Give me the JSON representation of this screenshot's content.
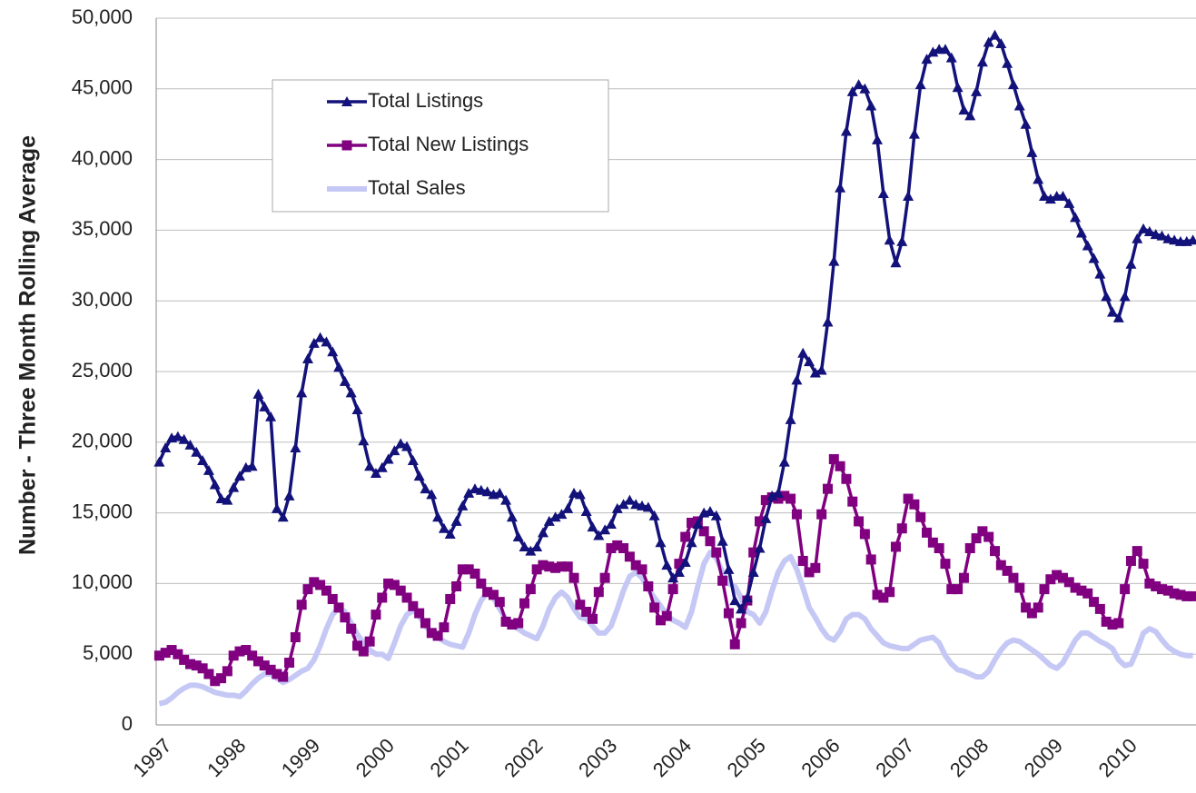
{
  "chart_data": {
    "type": "line",
    "y_label": "Number  - Three Month Rolling Average",
    "categories": [
      "1997",
      null,
      null,
      null,
      null,
      null,
      null,
      null,
      null,
      null,
      null,
      null,
      "1998",
      null,
      null,
      null,
      null,
      null,
      null,
      null,
      null,
      null,
      null,
      null,
      "1999",
      null,
      null,
      null,
      null,
      null,
      null,
      null,
      null,
      null,
      null,
      null,
      "2000",
      null,
      null,
      null,
      null,
      null,
      null,
      null,
      null,
      null,
      null,
      null,
      "2001",
      null,
      null,
      null,
      null,
      null,
      null,
      null,
      null,
      null,
      null,
      null,
      "2002",
      null,
      null,
      null,
      null,
      null,
      null,
      null,
      null,
      null,
      null,
      null,
      "2003",
      null,
      null,
      null,
      null,
      null,
      null,
      null,
      null,
      null,
      null,
      null,
      "2004",
      null,
      null,
      null,
      null,
      null,
      null,
      null,
      null,
      null,
      null,
      null,
      "2005",
      null,
      null,
      null,
      null,
      null,
      null,
      null,
      null,
      null,
      null,
      null,
      "2006",
      null,
      null,
      null,
      null,
      null,
      null,
      null,
      null,
      null,
      null,
      null,
      "2007",
      null,
      null,
      null,
      null,
      null,
      null,
      null,
      null,
      null,
      null,
      null,
      "2008",
      null,
      null,
      null,
      null,
      null,
      null,
      null,
      null,
      null,
      null,
      null,
      "2009",
      null,
      null,
      null,
      null,
      null,
      null,
      null,
      null,
      null,
      null,
      null,
      "2010",
      null,
      null,
      null,
      null,
      null,
      null,
      null,
      null,
      null,
      null,
      null
    ],
    "series": [
      {
        "name": "Total Listings",
        "color": "#12127a",
        "marker": "triangle",
        "values": [
          18600,
          19600,
          20300,
          20400,
          20200,
          19800,
          19300,
          18700,
          18000,
          17000,
          16000,
          15900,
          16800,
          17600,
          18200,
          18300,
          23400,
          22500,
          21800,
          15300,
          14700,
          16200,
          19600,
          23500,
          25900,
          27000,
          27400,
          27100,
          26400,
          25300,
          24300,
          23500,
          22300,
          20100,
          18300,
          17800,
          18200,
          18800,
          19400,
          19900,
          19700,
          18700,
          17600,
          16700,
          16300,
          14700,
          13900,
          13500,
          14400,
          15500,
          16400,
          16700,
          16600,
          16500,
          16300,
          16400,
          15900,
          14700,
          13300,
          12600,
          12300,
          12600,
          13600,
          14400,
          14700,
          14900,
          15300,
          16400,
          16300,
          15100,
          14000,
          13400,
          13800,
          14200,
          15300,
          15600,
          15900,
          15600,
          15500,
          15400,
          14800,
          12900,
          11300,
          10400,
          10800,
          11500,
          12900,
          14200,
          15000,
          15100,
          14800,
          13000,
          11000,
          8800,
          8200,
          9000,
          10800,
          12500,
          14600,
          16200,
          16400,
          18600,
          21600,
          24400,
          26300,
          25700,
          24900,
          25100,
          28500,
          32800,
          38000,
          42000,
          44800,
          45300,
          45000,
          43800,
          41400,
          37600,
          34300,
          32700,
          34200,
          37400,
          41800,
          45300,
          47100,
          47600,
          47800,
          47800,
          47200,
          45100,
          43500,
          43100,
          44800,
          46900,
          48300,
          48800,
          48200,
          46800,
          45300,
          43800,
          42500,
          40500,
          38600,
          37400,
          37200,
          37400,
          37400,
          36900,
          35900,
          34800,
          33900,
          33000,
          31900,
          30300,
          29200,
          28800,
          30300,
          32600,
          34400,
          35100,
          34900,
          34700,
          34600,
          34400,
          34300,
          34200,
          34200,
          34300
        ]
      },
      {
        "name": "Total New Listings",
        "color": "#800080",
        "marker": "square",
        "values": [
          4900,
          5100,
          5300,
          5000,
          4600,
          4300,
          4200,
          4000,
          3600,
          3100,
          3300,
          3800,
          4900,
          5200,
          5300,
          4900,
          4500,
          4200,
          3900,
          3600,
          3400,
          4400,
          6200,
          8500,
          9600,
          10100,
          9900,
          9500,
          8900,
          8300,
          7600,
          6800,
          5600,
          5200,
          5900,
          7800,
          9000,
          10000,
          9900,
          9500,
          9000,
          8400,
          7900,
          7200,
          6500,
          6300,
          6900,
          8900,
          9800,
          11000,
          11000,
          10700,
          10000,
          9400,
          9200,
          8700,
          7300,
          7100,
          7200,
          8600,
          9600,
          11000,
          11300,
          11200,
          11100,
          11200,
          11200,
          10400,
          8500,
          8000,
          7500,
          9400,
          10400,
          12500,
          12700,
          12500,
          11900,
          11300,
          11000,
          9800,
          8300,
          7400,
          7700,
          9600,
          11400,
          13300,
          14300,
          14400,
          13700,
          13000,
          12200,
          10200,
          7900,
          5700,
          7200,
          8800,
          12200,
          14400,
          15900,
          16100,
          16000,
          16200,
          16000,
          14900,
          11600,
          10800,
          11100,
          14900,
          16700,
          18800,
          18300,
          17400,
          15800,
          14400,
          13500,
          11700,
          9200,
          9000,
          9400,
          12600,
          13900,
          16000,
          15600,
          14700,
          13600,
          12900,
          12500,
          11400,
          9600,
          9600,
          10400,
          12500,
          13200,
          13700,
          13300,
          12300,
          11300,
          10900,
          10400,
          9700,
          8300,
          7900,
          8300,
          9600,
          10300,
          10600,
          10400,
          10100,
          9700,
          9500,
          9300,
          8700,
          8200,
          7300,
          7100,
          7200,
          9600,
          11600,
          12300,
          11400,
          10000,
          9800,
          9600,
          9500,
          9300,
          9200,
          9100,
          9100
        ]
      },
      {
        "name": "Total Sales",
        "color": "#c5c8f5",
        "marker": "none",
        "values": [
          1500,
          1600,
          1900,
          2300,
          2600,
          2800,
          2800,
          2700,
          2500,
          2300,
          2200,
          2100,
          2100,
          2000,
          2400,
          2900,
          3300,
          3600,
          3600,
          3300,
          3000,
          3200,
          3500,
          3800,
          4000,
          4600,
          5600,
          6800,
          7800,
          8300,
          8000,
          7200,
          6400,
          5800,
          5300,
          5000,
          5000,
          4700,
          5800,
          7000,
          7800,
          8100,
          7700,
          7000,
          6500,
          6200,
          5900,
          5700,
          5600,
          5500,
          6500,
          7800,
          8800,
          9400,
          9000,
          8200,
          7500,
          7000,
          6800,
          6500,
          6300,
          6100,
          7000,
          8200,
          9000,
          9400,
          9000,
          8200,
          7600,
          7500,
          7000,
          6500,
          6500,
          7000,
          8200,
          9500,
          10500,
          10800,
          10400,
          9600,
          9000,
          8400,
          7800,
          7400,
          7200,
          6900,
          8000,
          9800,
          11400,
          12200,
          11800,
          10800,
          10000,
          9800,
          9000,
          8000,
          7800,
          7200,
          8000,
          9500,
          10800,
          11600,
          11900,
          11000,
          9700,
          8300,
          7600,
          6800,
          6200,
          6000,
          6600,
          7500,
          7800,
          7800,
          7500,
          6800,
          6300,
          5800,
          5600,
          5500,
          5400,
          5400,
          5700,
          6000,
          6100,
          6200,
          5800,
          4900,
          4300,
          3900,
          3800,
          3600,
          3400,
          3400,
          3800,
          4600,
          5300,
          5800,
          6000,
          5900,
          5600,
          5300,
          5000,
          4600,
          4200,
          4000,
          4400,
          5200,
          6000,
          6500,
          6500,
          6200,
          5900,
          5700,
          5400,
          4600,
          4200,
          4300,
          5300,
          6500,
          6800,
          6600,
          6000,
          5500,
          5200,
          5000,
          4900,
          4900
        ]
      }
    ],
    "ylim": [
      0,
      50000
    ],
    "yticks": [
      0,
      {
        "value": 5000,
        "label": "5,000"
      },
      {
        "value": 10000,
        "label": "10,000"
      },
      {
        "value": 15000,
        "label": "15,000"
      },
      {
        "value": 20000,
        "label": "20,000"
      },
      {
        "value": 25000,
        "label": "25,000"
      },
      {
        "value": 30000,
        "label": "30,000"
      },
      {
        "value": 35000,
        "label": "35,000"
      },
      {
        "value": 40000,
        "label": "40,000"
      },
      {
        "value": 45000,
        "label": "45,000"
      },
      {
        "value": 50000,
        "label": "50,000"
      }
    ],
    "grid": true,
    "legend": "upper-left"
  }
}
